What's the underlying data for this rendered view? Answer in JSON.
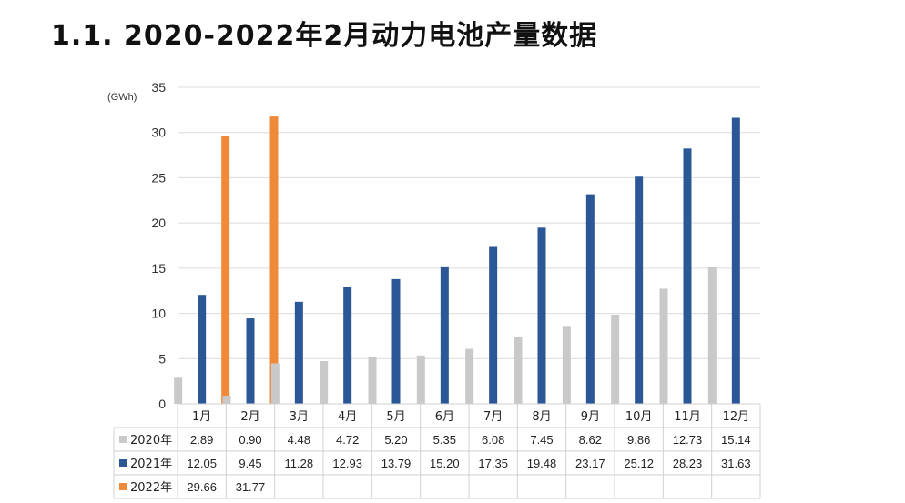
{
  "page": {
    "title": "1.1. 2020-2022年2月动力电池产量数据"
  },
  "chart_data": {
    "type": "bar",
    "title": "",
    "unit_label": "(GWh)",
    "categories": [
      "1月",
      "2月",
      "3月",
      "4月",
      "5月",
      "6月",
      "7月",
      "8月",
      "9月",
      "10月",
      "11月",
      "12月"
    ],
    "series": [
      {
        "name": "2020年",
        "color": "#c9c9c9",
        "values": [
          2.89,
          0.9,
          4.48,
          4.72,
          5.2,
          5.35,
          6.08,
          7.45,
          8.62,
          9.86,
          12.73,
          15.14
        ],
        "labels": [
          "2.89",
          "0.90",
          "4.48",
          "4.72",
          "5.20",
          "5.35",
          "6.08",
          "7.45",
          "8.62",
          "9.86",
          "12.73",
          "15.14"
        ]
      },
      {
        "name": "2021年",
        "color": "#2b5797",
        "values": [
          12.05,
          9.45,
          11.28,
          12.93,
          13.79,
          15.2,
          17.35,
          19.48,
          23.17,
          25.12,
          28.23,
          31.63
        ],
        "labels": [
          "12.05",
          "9.45",
          "11.28",
          "12.93",
          "13.79",
          "15.20",
          "17.35",
          "19.48",
          "23.17",
          "25.12",
          "28.23",
          "31.63"
        ]
      },
      {
        "name": "2022年",
        "color": "#ee8a3a",
        "values": [
          29.66,
          31.77,
          null,
          null,
          null,
          null,
          null,
          null,
          null,
          null,
          null,
          null
        ],
        "labels": [
          "29.66",
          "31.77",
          "",
          "",
          "",
          "",
          "",
          "",
          "",
          "",
          "",
          ""
        ]
      }
    ],
    "ylim": [
      0,
      35
    ],
    "yticks": [
      0,
      5,
      10,
      15,
      20,
      25,
      30,
      35
    ],
    "grid": true,
    "legend": "data-table"
  }
}
